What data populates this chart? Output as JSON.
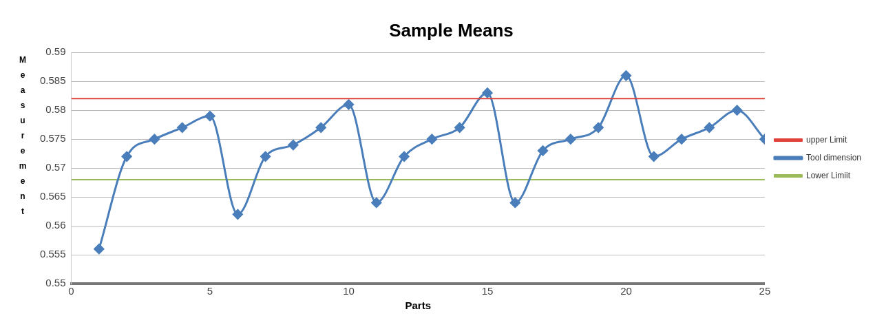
{
  "chart_data": {
    "type": "line",
    "title": "Sample Means",
    "xlabel": "Parts",
    "ylabel": "Measurement",
    "xlim": [
      0,
      25
    ],
    "xticks": [
      0,
      5,
      10,
      15,
      20,
      25
    ],
    "ylim": [
      0.55,
      0.59
    ],
    "yticks": [
      0.55,
      0.555,
      0.56,
      0.565,
      0.57,
      0.575,
      0.58,
      0.585,
      0.59
    ],
    "grid": "y",
    "legend": "right",
    "marker": "diamond",
    "series": [
      {
        "name": "upper Limit",
        "color": "#e0413a",
        "x": [
          0,
          25
        ],
        "values": [
          0.582,
          0.582
        ],
        "marker": "none"
      },
      {
        "name": "Tool dimension",
        "color": "#4a7ebb",
        "x": [
          1,
          2,
          3,
          4,
          5,
          6,
          7,
          8,
          9,
          10,
          11,
          12,
          13,
          14,
          15,
          16,
          17,
          18,
          19,
          20,
          21,
          22,
          23,
          24,
          25
        ],
        "values": [
          0.556,
          0.572,
          0.575,
          0.577,
          0.579,
          0.562,
          0.572,
          0.574,
          0.577,
          0.581,
          0.564,
          0.572,
          0.575,
          0.577,
          0.583,
          0.564,
          0.573,
          0.575,
          0.577,
          0.586,
          0.572,
          0.575,
          0.577,
          0.58,
          0.575
        ]
      },
      {
        "name": "Lower Limiit",
        "color": "#9bbb59",
        "x": [
          0,
          25
        ],
        "values": [
          0.568,
          0.568
        ],
        "marker": "none"
      }
    ]
  }
}
